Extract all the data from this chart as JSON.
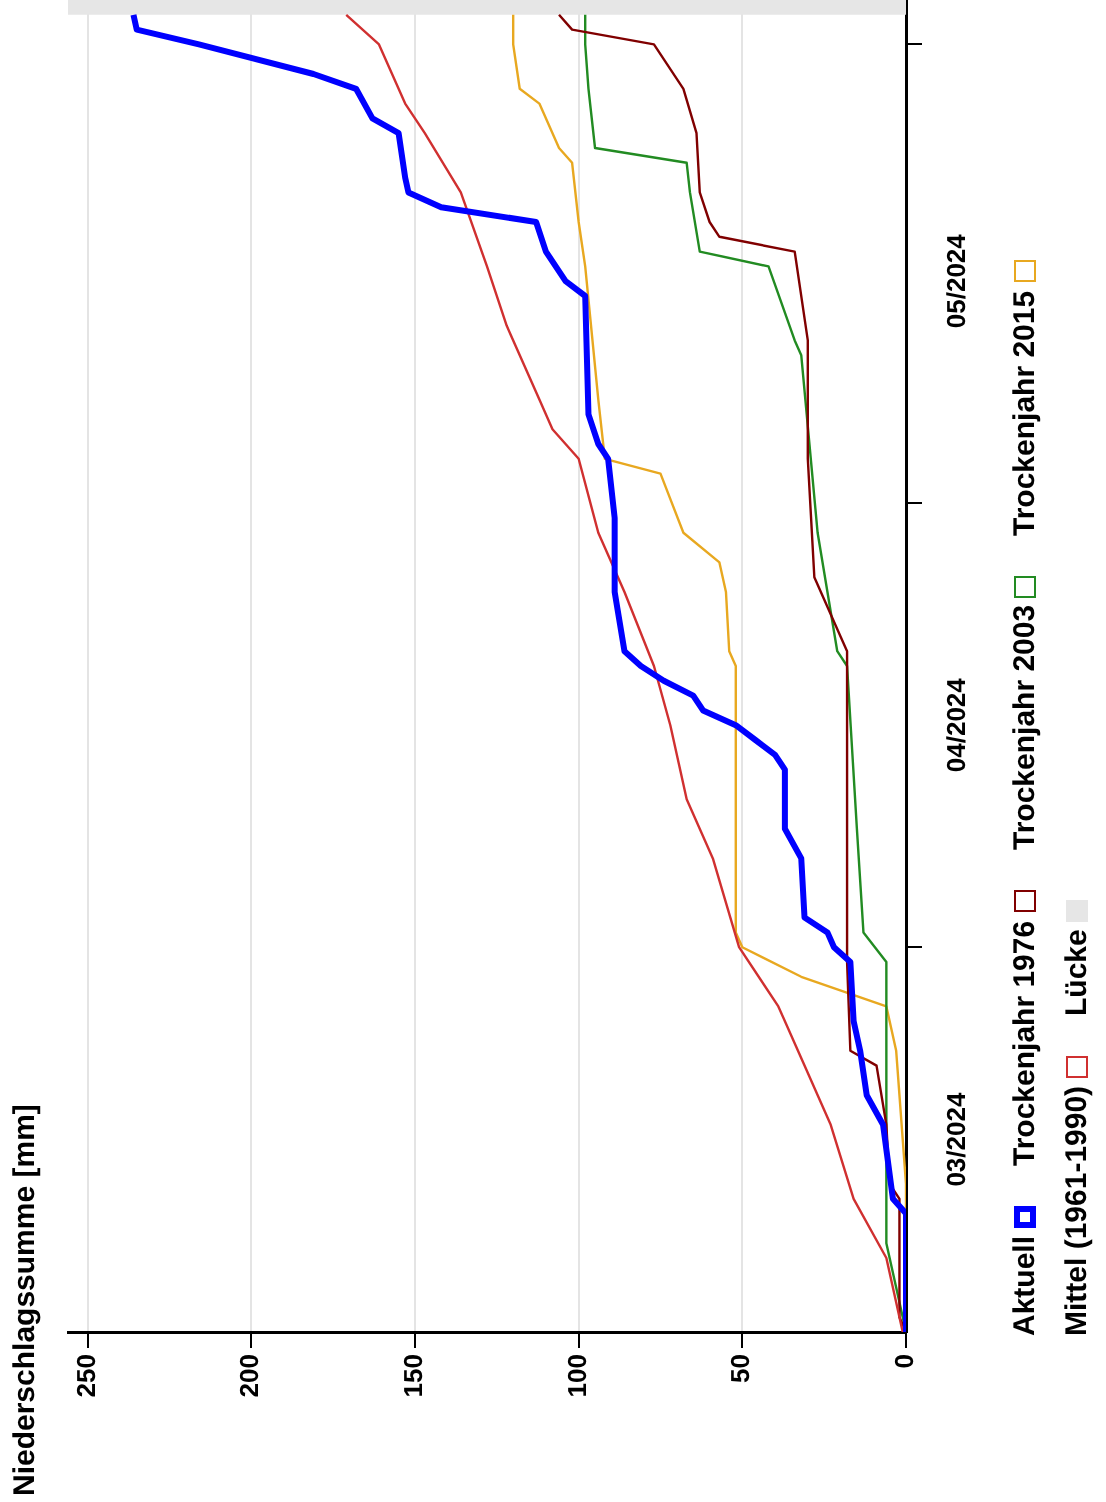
{
  "chart_data": {
    "type": "line",
    "ylabel": "Niederschlagssumme [mm]",
    "orientation": "horizontal",
    "ylim": [
      "2024-03-06",
      "2024-06-04"
    ],
    "yticks": [
      {
        "value": "2024-03-19",
        "label": "03/2024"
      },
      {
        "value": "2024-04-01",
        "label": null
      },
      {
        "value": "2024-04-16",
        "label": "04/2024"
      },
      {
        "value": "2024-05-01",
        "label": null
      },
      {
        "value": "2024-05-16",
        "label": "05/2024"
      },
      {
        "value": "2024-06-01",
        "label": null
      }
    ],
    "xlim": [
      256,
      0
    ],
    "xticks": [
      0,
      50,
      100,
      150,
      200,
      250
    ],
    "grid": "x",
    "legend": "bottom",
    "marker": "none",
    "line_style": "solid",
    "bands": [
      {
        "axis": "y",
        "from": "2024-06-03",
        "to": "2024-06-04",
        "label": "Lücke",
        "color": "#e6e6e6"
      }
    ],
    "series": [
      {
        "name": "Aktuell",
        "color": "#0000ff",
        "x": [
          "2024-03-06",
          "2024-03-14",
          "2024-03-15",
          "2024-03-20",
          "2024-03-22",
          "2024-03-25",
          "2024-03-27",
          "2024-03-31",
          "2024-04-01",
          "2024-04-02",
          "2024-04-03",
          "2024-04-07",
          "2024-04-09",
          "2024-04-13",
          "2024-04-14",
          "2024-04-15",
          "2024-04-16",
          "2024-04-17",
          "2024-04-18",
          "2024-04-19",
          "2024-04-20",
          "2024-04-21",
          "2024-04-25",
          "2024-04-30",
          "2024-05-04",
          "2024-05-05",
          "2024-05-07",
          "2024-05-15",
          "2024-05-16",
          "2024-05-17",
          "2024-05-18",
          "2024-05-20",
          "2024-05-21",
          "2024-05-22",
          "2024-05-23",
          "2024-05-26",
          "2024-05-27",
          "2024-05-29",
          "2024-05-30",
          "2024-06-01",
          "2024-06-02",
          "2024-06-03"
        ],
        "values": [
          0,
          0,
          4,
          7,
          12,
          14,
          16,
          17,
          22,
          24,
          31,
          32,
          37,
          37,
          40,
          46,
          52,
          62,
          65,
          74,
          81,
          86,
          89,
          89,
          91,
          94,
          97,
          98,
          104,
          107,
          110,
          113,
          142,
          152,
          153,
          155,
          163,
          168,
          181,
          216,
          235,
          236
        ]
      },
      {
        "name": "Mittel (1961-1990)",
        "color": "#d03030",
        "x": [
          "2024-03-06",
          "2024-03-11",
          "2024-03-15",
          "2024-03-20",
          "2024-03-24",
          "2024-03-28",
          "2024-04-01",
          "2024-04-07",
          "2024-04-11",
          "2024-04-16",
          "2024-04-20",
          "2024-04-25",
          "2024-04-29",
          "2024-05-04",
          "2024-05-06",
          "2024-05-08",
          "2024-05-13",
          "2024-05-17",
          "2024-05-22",
          "2024-05-26",
          "2024-05-28",
          "2024-06-01",
          "2024-06-03"
        ],
        "values": [
          1,
          6,
          16,
          23,
          31,
          39,
          51,
          59,
          67,
          72,
          77,
          86,
          94,
          100,
          108,
          112,
          122,
          128,
          136,
          147,
          153,
          161,
          171
        ]
      },
      {
        "name": "Trockenjahr 1976",
        "color": "#800000",
        "x": [
          "2024-03-06",
          "2024-03-07",
          "2024-03-15",
          "2024-03-16",
          "2024-03-20",
          "2024-03-24",
          "2024-03-25",
          "2024-03-31",
          "2024-04-21",
          "2024-04-22",
          "2024-04-26",
          "2024-05-04",
          "2024-05-12",
          "2024-05-18",
          "2024-05-19",
          "2024-05-20",
          "2024-05-22",
          "2024-05-26",
          "2024-05-29",
          "2024-06-01",
          "2024-06-02",
          "2024-06-03"
        ],
        "values": [
          0,
          2,
          2,
          5,
          6,
          9,
          17,
          18,
          18,
          20,
          28,
          30,
          30,
          34,
          57,
          60,
          63,
          64,
          68,
          77,
          102,
          106
        ]
      },
      {
        "name": "Trockenjahr 2003",
        "color": "#228b22",
        "x": [
          "2024-03-06",
          "2024-03-09",
          "2024-03-12",
          "2024-03-31",
          "2024-04-02",
          "2024-04-09",
          "2024-04-20",
          "2024-04-21",
          "2024-04-29",
          "2024-05-11",
          "2024-05-12",
          "2024-05-17",
          "2024-05-18",
          "2024-05-22",
          "2024-05-24",
          "2024-05-25",
          "2024-05-29",
          "2024-06-01",
          "2024-06-03"
        ],
        "values": [
          0,
          3,
          6,
          6,
          13,
          15,
          18,
          21,
          27,
          32,
          34,
          42,
          63,
          66,
          67,
          95,
          97,
          98,
          98
        ]
      },
      {
        "name": "Trockenjahr 2015",
        "color": "#e8a820",
        "x": [
          "2024-03-06",
          "2024-03-16",
          "2024-03-25",
          "2024-03-28",
          "2024-03-30",
          "2024-04-01",
          "2024-04-02",
          "2024-04-20",
          "2024-04-21",
          "2024-04-25",
          "2024-04-27",
          "2024-04-29",
          "2024-05-03",
          "2024-05-04",
          "2024-05-08",
          "2024-05-17",
          "2024-05-20",
          "2024-05-24",
          "2024-05-25",
          "2024-05-28",
          "2024-05-29",
          "2024-06-01",
          "2024-06-03"
        ],
        "values": [
          0,
          0,
          3,
          6,
          32,
          50,
          52,
          52,
          54,
          55,
          57,
          68,
          75,
          92,
          94,
          98,
          100,
          102,
          106,
          112,
          118,
          120,
          120
        ]
      }
    ]
  }
}
